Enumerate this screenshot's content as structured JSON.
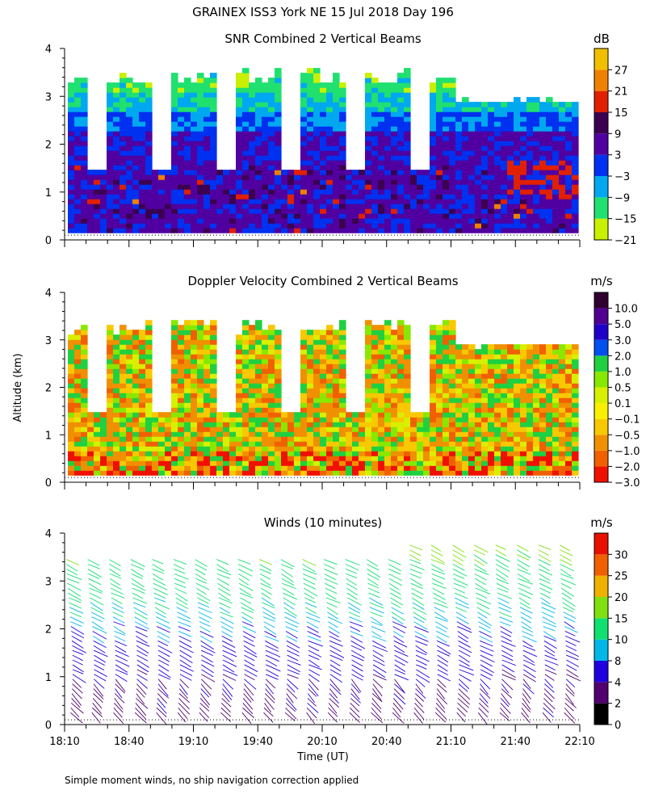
{
  "header": {
    "title": "GRAINEX ISS3 York NE  15 Jul 2018 Day 196"
  },
  "footer": {
    "note": "Simple moment winds, no ship navigation correction applied"
  },
  "shared_axes": {
    "ylabel": "Altitude (km)",
    "xlabel": "Time (UT)",
    "x_ticks": [
      "18:10",
      "18:40",
      "19:10",
      "19:40",
      "20:10",
      "20:40",
      "21:10",
      "21:40",
      "22:10"
    ],
    "y_ticks": [
      "0",
      "1",
      "2",
      "3",
      "4"
    ]
  },
  "chart_data": [
    {
      "type": "heatmap",
      "title": "SNR Combined 2 Vertical Beams",
      "xlabel": "Time (UT)",
      "ylabel": "Altitude (km)",
      "xlim": [
        "18:10",
        "22:10"
      ],
      "ylim": [
        0,
        4
      ],
      "colorbar": {
        "unit": "dB",
        "ticks": [
          "27",
          "21",
          "15",
          "9",
          "3",
          "−3",
          "−9",
          "−15",
          "−21"
        ],
        "colors": [
          "#c8f000",
          "#20e070",
          "#00a8f0",
          "#0030f0",
          "#5000a0",
          "#3c0050",
          "#e02000",
          "#f08000",
          "#f0c000"
        ]
      },
      "gap_times_utc": [
        "18:23",
        "18:53",
        "19:23",
        "19:53",
        "20:23",
        "20:53"
      ],
      "notes": "Layer structure: higher SNR (9 to 15 dB) near surface to ~1.5 km, 3 to 9 dB up to ~2.3 km, decreasing to -15 dB near 3.5 km top."
    },
    {
      "type": "heatmap",
      "title": "Doppler Velocity Combined 2 Vertical Beams",
      "xlabel": "Time (UT)",
      "ylabel": "Altitude (km)",
      "xlim": [
        "18:10",
        "22:10"
      ],
      "ylim": [
        0,
        4
      ],
      "colorbar": {
        "unit": "m/s",
        "ticks": [
          "10.0",
          "5.0",
          "3.0",
          "2.0",
          "1.0",
          "0.5",
          "0.1",
          "−0.1",
          "−0.5",
          "−1.0",
          "−2.0",
          "−3.0"
        ],
        "colors": [
          "#f01000",
          "#f06000",
          "#f09000",
          "#f8c800",
          "#f8f000",
          "#d8f000",
          "#88e800",
          "#20d040",
          "#0050f0",
          "#2000c8",
          "#500090",
          "#300030"
        ]
      },
      "notes": "Mostly -0.5 to -2.0 m/s (yellow/orange) with green near-zero patches; stronger downward -2 to -3 m/s near surface."
    },
    {
      "type": "scatter",
      "title": "Winds (10 minutes)",
      "xlabel": "Time (UT)",
      "ylabel": "Altitude (km)",
      "xlim": [
        "18:10",
        "22:10"
      ],
      "ylim": [
        0,
        4
      ],
      "colorbar": {
        "unit": "m/s",
        "ticks": [
          "30",
          "25",
          "20",
          "15",
          "10",
          "8",
          "4",
          "2",
          "0"
        ],
        "colors": [
          "#000000",
          "#500070",
          "#2000e0",
          "#00b8e8",
          "#10e070",
          "#80e010",
          "#f0b000",
          "#f06000",
          "#e81000"
        ]
      },
      "profile_times_utc": [
        "18:10",
        "18:20",
        "18:30",
        "18:40",
        "18:50",
        "19:00",
        "19:10",
        "19:20",
        "19:30",
        "19:40",
        "19:50",
        "20:00",
        "20:10",
        "20:20",
        "20:30",
        "20:40",
        "20:50",
        "21:00",
        "21:10",
        "21:20",
        "21:30",
        "21:40",
        "21:50",
        "22:00"
      ],
      "speed_profile": {
        "altitude_km": [
          0.25,
          1.0,
          1.5,
          2.0,
          2.5,
          3.0,
          3.5,
          3.8
        ],
        "speed_ms": [
          3,
          4,
          6,
          8,
          10,
          12,
          15,
          16
        ]
      }
    }
  ]
}
